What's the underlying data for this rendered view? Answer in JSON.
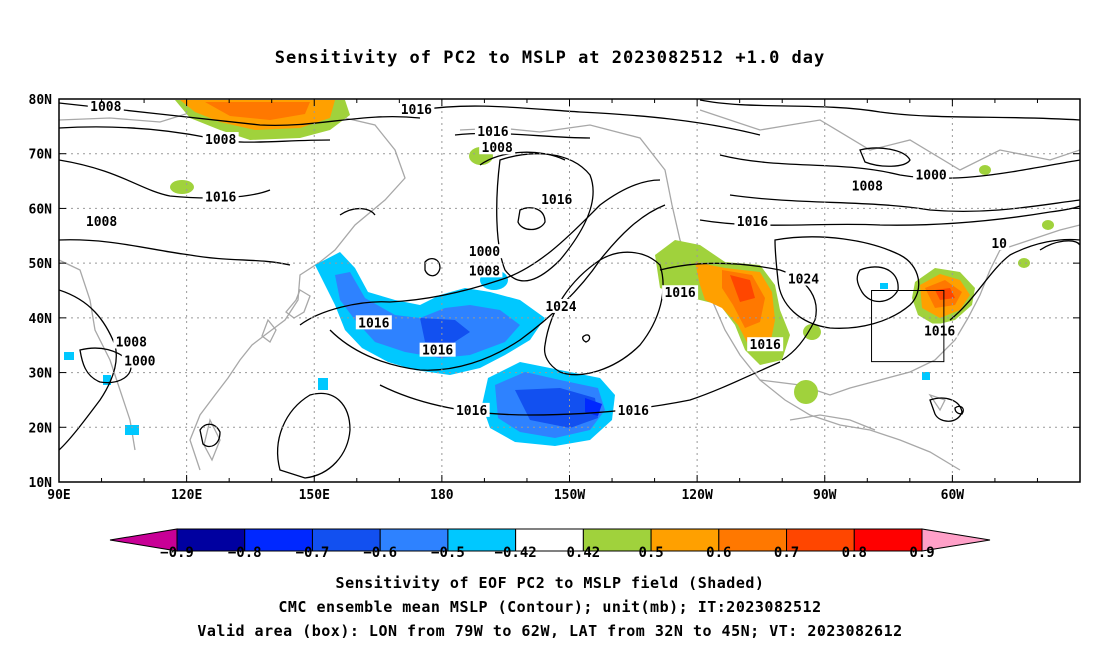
{
  "title": "Sensitivity of PC2 to MSLP at 2023082512 +1.0 day",
  "map": {
    "lon_labels": [
      "90E",
      "120E",
      "150E",
      "180",
      "150W",
      "120W",
      "90W",
      "60W"
    ],
    "lat_labels": [
      "80N",
      "70N",
      "60N",
      "50N",
      "40N",
      "30N",
      "20N",
      "10N"
    ],
    "contour_unit": "mb",
    "contour_labels": [
      {
        "text": "1008",
        "lon": 101,
        "lat": 78.5
      },
      {
        "text": "1008",
        "lon": 128,
        "lat": 72.5
      },
      {
        "text": "1016",
        "lon": 128,
        "lat": 62.0
      },
      {
        "text": "1008",
        "lon": 100,
        "lat": 57.5
      },
      {
        "text": "1008",
        "lon": 107,
        "lat": 35.5
      },
      {
        "text": "1000",
        "lon": 109,
        "lat": 32.0
      },
      {
        "text": "1016",
        "lon": 174,
        "lat": 78.0
      },
      {
        "text": "1016",
        "lon": 192,
        "lat": 74.0
      },
      {
        "text": "1008",
        "lon": 193,
        "lat": 71.0
      },
      {
        "text": "1016",
        "lon": 207,
        "lat": 61.5
      },
      {
        "text": "1000",
        "lon": 190,
        "lat": 52.0
      },
      {
        "text": "1008",
        "lon": 190,
        "lat": 48.5
      },
      {
        "text": "1024",
        "lon": 208,
        "lat": 42.0
      },
      {
        "text": "1016",
        "lon": 164,
        "lat": 39.0
      },
      {
        "text": "1016",
        "lon": 179,
        "lat": 34.0
      },
      {
        "text": "1016",
        "lon": 187,
        "lat": 23.0
      },
      {
        "text": "1016",
        "lon": 225,
        "lat": 23.0
      },
      {
        "text": "1016",
        "lon": 236,
        "lat": 44.5
      },
      {
        "text": "1016",
        "lon": 256,
        "lat": 35.0
      },
      {
        "text": "1024",
        "lon": 265,
        "lat": 47.0
      },
      {
        "text": "1016",
        "lon": 253,
        "lat": 57.5
      },
      {
        "text": "1008",
        "lon": 280,
        "lat": 64.0
      },
      {
        "text": "1000",
        "lon": 295,
        "lat": 66.0
      },
      {
        "text": "1016",
        "lon": 297,
        "lat": 37.5
      },
      {
        "text": "10",
        "lon": 311,
        "lat": 53.5
      }
    ],
    "valid_box": {
      "lon_min": -79,
      "lon_max": -62,
      "lat_min": 32,
      "lat_max": 45
    }
  },
  "colorbar": {
    "labels": [
      "-0.9",
      "-0.8",
      "-0.7",
      "-0.6",
      "-0.5",
      "-0.42",
      "0.42",
      "0.5",
      "0.6",
      "0.7",
      "0.8",
      "0.9"
    ],
    "colors": {
      "low_extend": "#c80096",
      "bins": [
        "#0000a0",
        "#0028ff",
        "#1250f0",
        "#2e82ff",
        "#00c8ff",
        "#ffffff",
        "#a0d23c",
        "#ffa000",
        "#ff7800",
        "#ff4600",
        "#ff0000"
      ],
      "high_extend": "#ffa0c8"
    }
  },
  "captions": [
    "Sensitivity of EOF PC2 to MSLP field (Shaded)",
    "CMC ensemble mean MSLP (Contour); unit(mb); IT:2023082512",
    "Valid area (box): LON from 79W to 62W, LAT from 32N to 45N; VT: 2023082612"
  ]
}
